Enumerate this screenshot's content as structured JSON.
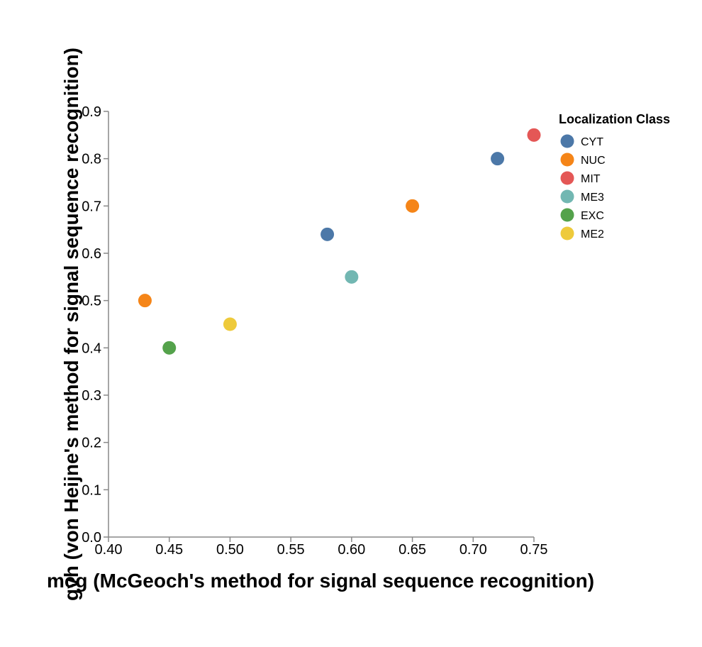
{
  "chart_data": {
    "type": "scatter",
    "xlabel": "mcg (McGeoch's method for signal sequence recognition)",
    "ylabel": "gvh (von Heijne's method for signal sequence recognition)",
    "xlim": [
      0.4,
      0.75
    ],
    "ylim": [
      0.0,
      0.9
    ],
    "x_ticks": [
      "0.40",
      "0.45",
      "0.50",
      "0.55",
      "0.60",
      "0.65",
      "0.70",
      "0.75"
    ],
    "y_ticks": [
      "0.0",
      "0.1",
      "0.2",
      "0.3",
      "0.4",
      "0.5",
      "0.6",
      "0.7",
      "0.8",
      "0.9"
    ],
    "grid": false,
    "legend": {
      "title": "Localization Class",
      "placement": "top-right",
      "entries": [
        {
          "label": "CYT",
          "color": "#4c78a8"
        },
        {
          "label": "NUC",
          "color": "#f58518"
        },
        {
          "label": "MIT",
          "color": "#e45756"
        },
        {
          "label": "ME3",
          "color": "#72b7b2"
        },
        {
          "label": "EXC",
          "color": "#54a24b"
        },
        {
          "label": "ME2",
          "color": "#eeca3b"
        }
      ]
    },
    "points": [
      {
        "x": 0.58,
        "y": 0.64,
        "class": "CYT"
      },
      {
        "x": 0.43,
        "y": 0.5,
        "class": "NUC"
      },
      {
        "x": 0.72,
        "y": 0.8,
        "class": "CYT"
      },
      {
        "x": 0.75,
        "y": 0.85,
        "class": "MIT"
      },
      {
        "x": 0.6,
        "y": 0.55,
        "class": "ME3"
      },
      {
        "x": 0.45,
        "y": 0.4,
        "class": "EXC"
      },
      {
        "x": 0.65,
        "y": 0.7,
        "class": "NUC"
      },
      {
        "x": 0.5,
        "y": 0.45,
        "class": "ME2"
      }
    ]
  }
}
